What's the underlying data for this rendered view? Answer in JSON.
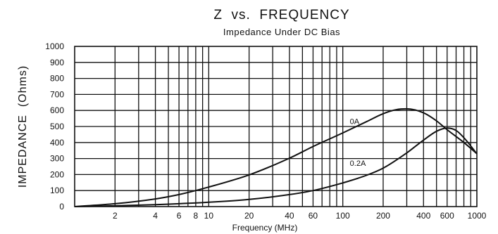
{
  "chart_data": {
    "type": "line",
    "title": "Z  vs.  FREQUENCY",
    "subtitle": "Impedance Under DC Bias",
    "xlabel": "Frequency (MHz)",
    "ylabel": "IMPEDANCE  (Ohms)",
    "xscale": "log",
    "xlim": [
      1,
      1000
    ],
    "ylim": [
      0,
      1000
    ],
    "grid": true,
    "x_ticks": [
      2,
      4,
      6,
      8,
      10,
      20,
      40,
      60,
      100,
      200,
      400,
      600,
      1000
    ],
    "y_ticks": [
      0,
      100,
      200,
      300,
      400,
      500,
      600,
      700,
      800,
      900,
      1000
    ],
    "series": [
      {
        "name": "0A",
        "x": [
          1,
          2,
          4,
          6,
          10,
          20,
          40,
          60,
          100,
          150,
          200,
          250,
          300,
          400,
          500,
          600,
          800,
          1000
        ],
        "y": [
          0,
          18,
          48,
          75,
          122,
          198,
          302,
          375,
          460,
          530,
          580,
          605,
          610,
          585,
          535,
          480,
          400,
          330
        ]
      },
      {
        "name": "0.2A",
        "x": [
          1,
          2,
          4,
          6,
          10,
          20,
          40,
          60,
          100,
          150,
          200,
          300,
          400,
          500,
          600,
          700,
          800,
          1000
        ],
        "y": [
          0,
          5,
          12,
          18,
          27,
          45,
          75,
          100,
          148,
          195,
          240,
          335,
          415,
          470,
          490,
          475,
          430,
          330
        ]
      }
    ]
  }
}
